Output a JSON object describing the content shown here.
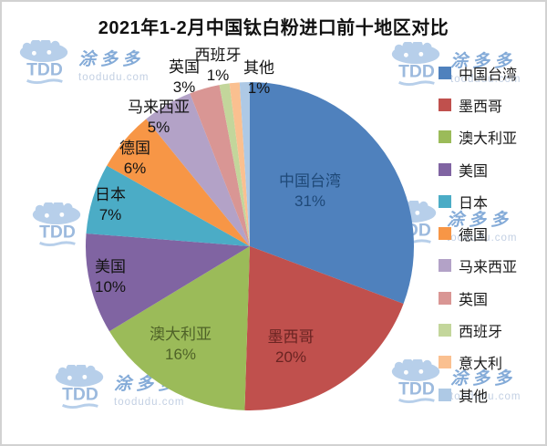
{
  "chart_data": {
    "type": "pie",
    "title": "2021年1-2月中国钛白粉进口前十地区对比",
    "legend_position": "right",
    "slices": [
      {
        "name": "中国台湾",
        "value": 31,
        "pct_label": "31%",
        "color": "#4f81bd",
        "label_color": "#1f4978"
      },
      {
        "name": "墨西哥",
        "value": 20,
        "pct_label": "20%",
        "color": "#c0504d",
        "label_color": "#6a2422"
      },
      {
        "name": "澳大利亚",
        "value": 16,
        "pct_label": "16%",
        "color": "#9bbb59",
        "label_color": "#4f6228"
      },
      {
        "name": "美国",
        "value": 10,
        "pct_label": "10%",
        "color": "#8064a2",
        "label_color": "#141414"
      },
      {
        "name": "日本",
        "value": 7,
        "pct_label": "7%",
        "color": "#4bacc6",
        "label_color": "#141414"
      },
      {
        "name": "德国",
        "value": 6,
        "pct_label": "6%",
        "color": "#f79646",
        "label_color": "#141414"
      },
      {
        "name": "马来西亚",
        "value": 5,
        "pct_label": "5%",
        "color": "#b3a2c7",
        "label_color": "#141414"
      },
      {
        "name": "英国",
        "value": 3,
        "pct_label": "3%",
        "color": "#d99694",
        "label_color": "#141414"
      },
      {
        "name": "西班牙",
        "value": 1,
        "pct_label": "1%",
        "color": "#c3d69b",
        "label_color": "#141414"
      },
      {
        "name": "意大利",
        "value": 1,
        "pct_label": null,
        "color": "#fac090",
        "label_color": null
      },
      {
        "name": "其他",
        "value": 1,
        "pct_label": "1%",
        "color": "#aec9e5",
        "label_color": "#141414"
      }
    ]
  },
  "watermark": {
    "logo_text": "TDD",
    "brand": "涂多多",
    "domain": "toodudu.com",
    "colors": {
      "cloud": "#b7cfea",
      "tdd": "#9cbade",
      "brand": "#84abd8",
      "domain": "#c3d0e3"
    }
  }
}
